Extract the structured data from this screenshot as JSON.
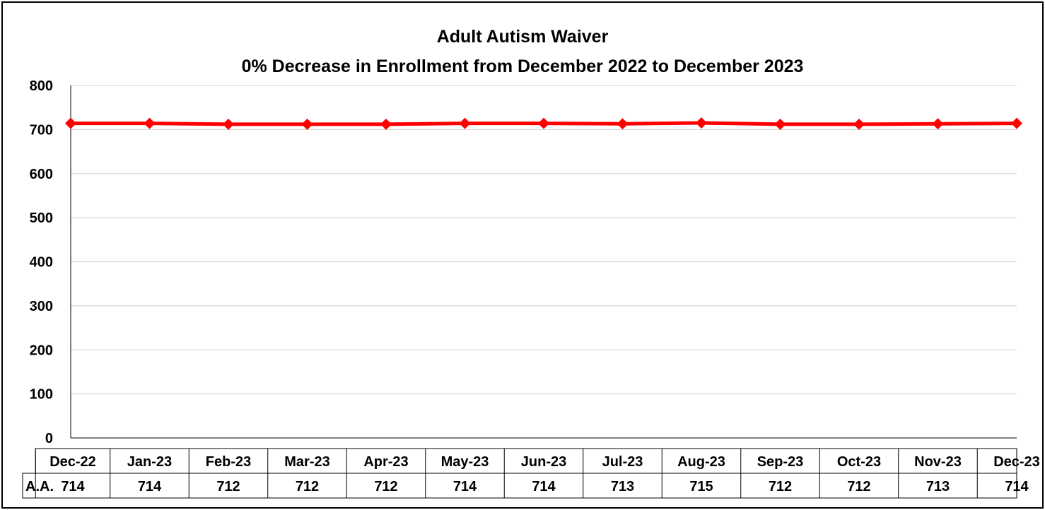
{
  "chart_data": {
    "type": "line",
    "title": "Adult Autism Waiver",
    "subtitle": "0% Decrease in Enrollment from December 2022 to December 2023",
    "categories": [
      "Dec-22",
      "Jan-23",
      "Feb-23",
      "Mar-23",
      "Apr-23",
      "May-23",
      "Jun-23",
      "Jul-23",
      "Aug-23",
      "Sep-23",
      "Oct-23",
      "Nov-23",
      "Dec-23"
    ],
    "series": [
      {
        "name": "A.A.",
        "values": [
          714,
          714,
          712,
          712,
          712,
          714,
          714,
          713,
          715,
          712,
          712,
          713,
          714
        ],
        "color": "#ff0000"
      }
    ],
    "y_ticks": [
      "0",
      "100",
      "200",
      "300",
      "400",
      "500",
      "600",
      "700",
      "800"
    ],
    "ylim": [
      0,
      800
    ],
    "grid": true,
    "legend": "data table below chart",
    "xlabel": "",
    "ylabel": ""
  }
}
